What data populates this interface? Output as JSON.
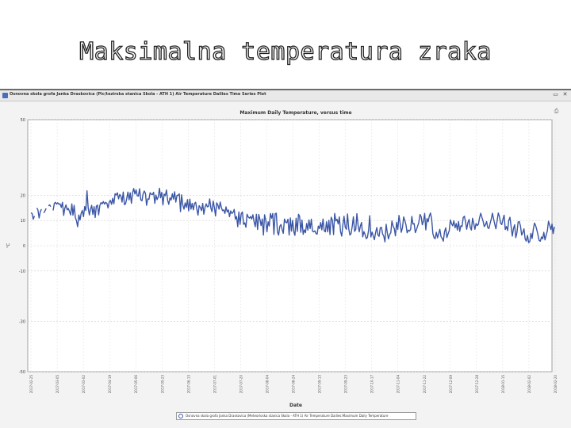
{
  "slide": {
    "title": "Maksimalna temperatura zraka"
  },
  "window": {
    "title": "Osnovna skola grofa Janka Draskovica (Pic/tezirska stanica Skola - ATH 1) Air Temperature Dailies Time Series Plot",
    "restore_glyph": "▭",
    "close_glyph": "✕",
    "print_icon": "printer-icon",
    "print_glyph": "⎙"
  },
  "chart_data": {
    "type": "line",
    "title": "Maximum Daily Temperature, versus time",
    "xlabel": "Date",
    "ylabel": "°C",
    "ylim": [
      -50,
      50
    ],
    "ytick_values": [
      -50,
      -30,
      -10,
      0,
      10,
      20,
      50
    ],
    "grid": true,
    "line_color": "#3b56a6",
    "x_ticks": [
      "2017-02-25",
      "2017-03-05",
      "2017-03-02",
      "2017-04-19",
      "2017-05-06",
      "2017-05-23",
      "2017-06-13",
      "2017-07-01",
      "2017-07-20",
      "2017-08-04",
      "2017-08-24",
      "2017-09-13",
      "2017-09-23",
      "2017-10-17",
      "2017-11-04",
      "2017-11-22",
      "2017-12-09",
      "2017-12-28",
      "2018-01-15",
      "2018-02-02",
      "2018-02-20"
    ],
    "x_start": "2017-02-25",
    "x_end": "2018-02-20",
    "series": [
      {
        "values": [
          13,
          12.8,
          10.5,
          11.8,
          null,
          15,
          14.2,
          11,
          13.5,
          14.5,
          null,
          13,
          13.8,
          14.8,
          null,
          15.8,
          16.2,
          15.5,
          null,
          14,
          16.8,
          17.2,
          16.5,
          17,
          16.4,
          16.6,
          15.2,
          17.2,
          12,
          14.8,
          16.2,
          14.2,
          14.8,
          13.6,
          12.2,
          16.6,
          12.1,
          16,
          11.2,
          9.8,
          7.5,
          12.2,
          10.2,
          12.8,
          14,
          11.5,
          15.5,
          14,
          21.8,
          15,
          12.2,
          14.5,
          16,
          12.4,
          15.5,
          11.2,
          15.7,
          16.1,
          12.2,
          16,
          17.1,
          16.6,
          17.5,
          16.5,
          17.2,
          16.8,
          15,
          17.3,
          18,
          16.4,
          18.8,
          16.6,
          20.6,
          20.1,
          21,
          18.6,
          20.3,
          19.8,
          17.3,
          21.3,
          16.3,
          16.6,
          18.7,
          21.3,
          18.2,
          21,
          16.8,
          21,
          22.7,
          20.5,
          22.2,
          19.8,
          19.7,
          22.6,
          18.2,
          17.8,
          20.5,
          21.7,
          20.8,
          16,
          18.6,
          18.4,
          21,
          20.4,
          20.3,
          21.2,
          16.8,
          20.1,
          18.3,
          19.4,
          22.8,
          19,
          21.2,
          16.2,
          20.5,
          19.8,
          22.1,
          18,
          16.4,
          19,
          18.1,
          20.6,
          18.5,
          21.4,
          17.3,
          20,
          20,
          20.6,
          13.5,
          20.2,
          16.2,
          14.5,
          17,
          15.2,
          18.3,
          13.8,
          18.5,
          14.5,
          16.8,
          14.2,
          16.8,
          17.2,
          14.5,
          12.1,
          15.9,
          15.2,
          13.9,
          16.8,
          12.5,
          15.2,
          16.6,
          15.4,
          15.6,
          18.6,
          14.9,
          13.5,
          17.7,
          15.2,
          11.8,
          17,
          16.2,
          14.5,
          17.3,
          15.2,
          13.9,
          14.2,
          12.8,
          15.4,
          13.4,
          14.2,
          11.5,
          13.8,
          12.8,
          13.2,
          14.4,
          10.5,
          11.6,
          7.5,
          13.4,
          8.5,
          12.7,
          13.4,
          8.5,
          9.1,
          7.3,
          12.5,
          11.4,
          10.9,
          11.6,
          10.6,
          12.3,
          9.5,
          7.5,
          12.5,
          6.4,
          12.4,
          10.4,
          8,
          10.6,
          4.2,
          12.3,
          10.2,
          5.5,
          9.5,
          7.8,
          12.8,
          10.9,
          12.8,
          4.5,
          12.6,
          12.9,
          5.5,
          4.2,
          7.7,
          8.4,
          6.5,
          4.9,
          10.6,
          9.3,
          9.1,
          10.5,
          4.2,
          11,
          5.8,
          10.1,
          5.5,
          4.1,
          10.9,
          5.7,
          12.5,
          11.7,
          5.3,
          10.2,
          4.5,
          6.3,
          5.2,
          8.8,
          6.2,
          10.2,
          6.8,
          10.5,
          5.8,
          5.5,
          5.9,
          4.8,
          4.6,
          7.8,
          6.8,
          9.2,
          6.3,
          10.6,
          5.9,
          5.5,
          9.5,
          5.5,
          10.1,
          4.4,
          11.3,
          10.2,
          4.4,
          12.8,
          9.8,
          10.5,
          8.6,
          11.4,
          5.6,
          3.8,
          8.2,
          11.7,
          7.4,
          6.5,
          12.6,
          6.8,
          4.2,
          4.8,
          7.6,
          11.5,
          5.7,
          6.4,
          12.7,
          8.1,
          5.5,
          7.8,
          9.2,
          3.5,
          5.6,
          4.5,
          2.8,
          3.3,
          6.2,
          11.9,
          3.5,
          5.4,
          3.8,
          2.4,
          5.2,
          7.2,
          4.3,
          3.7,
          7.1,
          7.3,
          4.7,
          3.8,
          1.5,
          8.5,
          5.3,
          2.7,
          4.4,
          5.2,
          9.8,
          7.8,
          6.8,
          3.9,
          9.3,
          6.4,
          12,
          9,
          5.3,
          7.2,
          11.4,
          10,
          8.3,
          5.1,
          6.2,
          5.8,
          6.5,
          11.6,
          8.6,
          8.8,
          5.2,
          6.4,
          7.8,
          9.2,
          12.4,
          11.5,
          8.3,
          9.8,
          12.8,
          6.3,
          10.8,
          9.5,
          11.9,
          13,
          10.6,
          4.8,
          3.2,
          2.8,
          5.3,
          3.1,
          4.8,
          6.5,
          3.6,
          2.9,
          1.8,
          5.5,
          7.1,
          3.2,
          4.6,
          5.9,
          10.2,
          8.7,
          7.9,
          9.9,
          7.1,
          8.8,
          6.2,
          9.6,
          5.7,
          7.9,
          7.6,
          11.2,
          11.7,
          9.4,
          6.5,
          9.2,
          10.4,
          7.4,
          6.2,
          10.9,
          8.9,
          6.5,
          8.8,
          8,
          8.5,
          11.1,
          12.9,
          11.2,
          9.8,
          7.6,
          8.3,
          9.6,
          7.2,
          6.8,
          8.8,
          10.5,
          12.9,
          10.6,
          8.5,
          6.7,
          9.8,
          13,
          11.5,
          9,
          8.4,
          10.5,
          12.1,
          6.4,
          7.6,
          6,
          10,
          11.3,
          7.5,
          3.8,
          6.7,
          8.3,
          3.2,
          5.3,
          9.4,
          9.6,
          7.8,
          4.2,
          5.2,
          6.7,
          2.6,
          1.8,
          4.1,
          1.2,
          1.7,
          4.9,
          2.9,
          6.6,
          9,
          8,
          6.3,
          4.2,
          2.1,
          1.8,
          3.5,
          2.7,
          5.3,
          2.3,
          4.2,
          5.9,
          9.7,
          8.2,
          6.4,
          8.6,
          4.8,
          7.5
        ]
      }
    ],
    "legend": "Osnovna skola grofa Janka Draskovica (Meteorloska stanica Skola - ATH 1) Air Temperature Dailies:Maximum Daily Temperature"
  }
}
